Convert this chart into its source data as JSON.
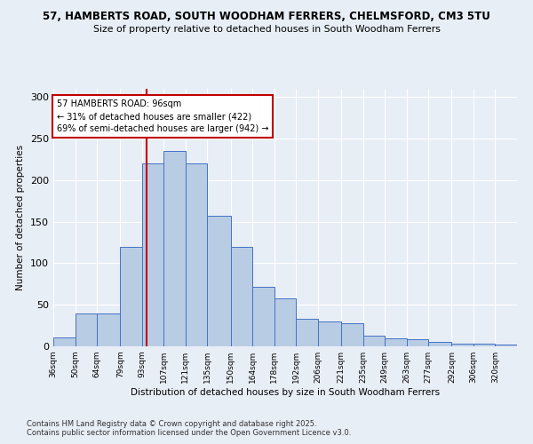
{
  "title1": "57, HAMBERTS ROAD, SOUTH WOODHAM FERRERS, CHELMSFORD, CM3 5TU",
  "title2": "Size of property relative to detached houses in South Woodham Ferrers",
  "xlabel": "Distribution of detached houses by size in South Woodham Ferrers",
  "ylabel": "Number of detached properties",
  "bins": [
    36,
    50,
    64,
    79,
    93,
    107,
    121,
    135,
    150,
    164,
    178,
    192,
    206,
    221,
    235,
    249,
    263,
    277,
    292,
    306,
    320
  ],
  "counts": [
    11,
    40,
    40,
    120,
    220,
    235,
    220,
    157,
    120,
    72,
    58,
    33,
    30,
    28,
    13,
    10,
    9,
    5,
    3,
    3,
    2
  ],
  "bar_color": "#b8cce4",
  "bar_edge_color": "#4472c4",
  "vline_x": 96,
  "vline_color": "#c00000",
  "annotation_title": "57 HAMBERTS ROAD: 96sqm",
  "annotation_line1": "← 31% of detached houses are smaller (422)",
  "annotation_line2": "69% of semi-detached houses are larger (942) →",
  "annotation_box_color": "#ffffff",
  "annotation_box_edge": "#c00000",
  "footnote1": "Contains HM Land Registry data © Crown copyright and database right 2025.",
  "footnote2": "Contains public sector information licensed under the Open Government Licence v3.0.",
  "bg_color": "#e8eef6",
  "grid_color": "#ffffff",
  "ylim": [
    0,
    310
  ],
  "yticks": [
    0,
    50,
    100,
    150,
    200,
    250,
    300
  ]
}
